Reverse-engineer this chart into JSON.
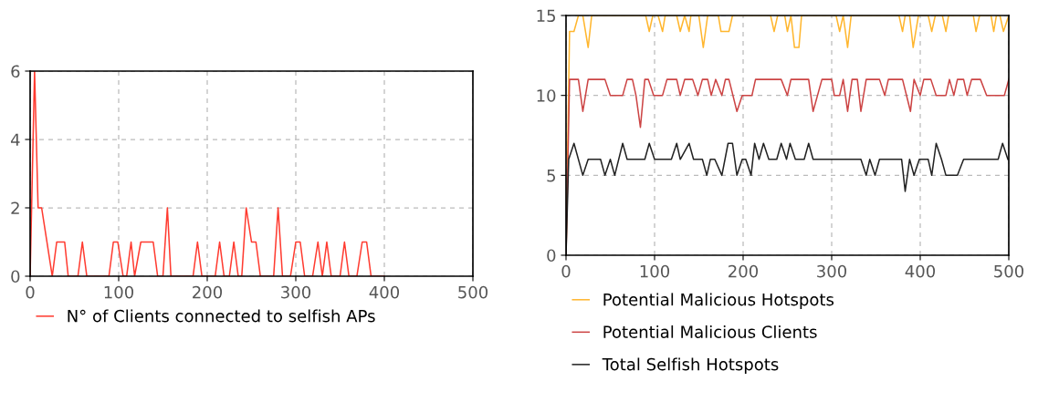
{
  "chart_data": [
    {
      "type": "line",
      "xlim": [
        0,
        500
      ],
      "xticks": [
        0,
        100,
        200,
        300,
        400,
        500
      ],
      "ylim": [
        0,
        6
      ],
      "yticks": [
        0,
        2,
        4,
        6
      ],
      "grid": true,
      "legend": "bottom",
      "marker": "none",
      "line_style": "solid",
      "series": [
        {
          "name": "N° of Clients connected to selfish APs",
          "color": "#ff3b30",
          "x": [
            0,
            5,
            9,
            13,
            25,
            30,
            39,
            43,
            54,
            59,
            64,
            89,
            94,
            99,
            105,
            109,
            114,
            118,
            125,
            139,
            144,
            150,
            155,
            159,
            184,
            189,
            194,
            209,
            214,
            219,
            225,
            230,
            235,
            239,
            244,
            250,
            255,
            260,
            275,
            280,
            285,
            294,
            300,
            305,
            310,
            319,
            325,
            330,
            335,
            340,
            350,
            355,
            360,
            369,
            375,
            380,
            385,
            400
          ],
          "values": [
            0,
            6,
            2,
            2,
            0,
            1,
            1,
            0,
            0,
            1,
            0,
            0,
            1,
            1,
            0,
            0,
            1,
            0,
            1,
            1,
            0,
            0,
            2,
            0,
            0,
            1,
            0,
            0,
            1,
            0,
            0,
            1,
            0,
            0,
            2,
            1,
            1,
            0,
            0,
            2,
            0,
            0,
            1,
            1,
            0,
            0,
            1,
            0,
            1,
            0,
            0,
            1,
            0,
            0,
            1,
            1,
            0,
            0
          ]
        }
      ]
    },
    {
      "type": "line",
      "xlim": [
        0,
        500
      ],
      "xticks": [
        0,
        100,
        200,
        300,
        400,
        500
      ],
      "ylim": [
        0,
        15
      ],
      "yticks": [
        0,
        5,
        10,
        15
      ],
      "grid": true,
      "legend": "bottom",
      "marker": "none",
      "line_style": "solid",
      "series": [
        {
          "name": "Potential Malicious Hotspots",
          "color": "#ffb62e",
          "x": [
            0,
            4,
            9,
            14,
            19,
            25,
            29,
            90,
            94,
            98,
            104,
            109,
            112,
            125,
            129,
            134,
            139,
            141,
            150,
            155,
            160,
            172,
            175,
            184,
            188,
            231,
            235,
            239,
            247,
            250,
            254,
            258,
            263,
            266,
            305,
            309,
            313,
            318,
            322,
            376,
            380,
            383,
            388,
            392,
            398,
            409,
            413,
            417,
            425,
            429,
            432,
            460,
            463,
            467,
            480,
            483,
            486,
            490,
            494,
            500
          ],
          "values": [
            0,
            14,
            14,
            15,
            15,
            13,
            15,
            15,
            14,
            15,
            15,
            14,
            15,
            15,
            14,
            15,
            14,
            15,
            15,
            13,
            15,
            15,
            14,
            14,
            15,
            15,
            14,
            15,
            15,
            14,
            15,
            13,
            13,
            15,
            15,
            14,
            15,
            13,
            15,
            15,
            14,
            15,
            15,
            13,
            15,
            15,
            14,
            15,
            15,
            14,
            15,
            15,
            14,
            15,
            15,
            14,
            15,
            15,
            14,
            15
          ]
        },
        {
          "name": "Potential Malicious Clients",
          "color": "#cc4444",
          "x": [
            0,
            4,
            14,
            19,
            25,
            44,
            50,
            64,
            69,
            75,
            79,
            84,
            89,
            93,
            99,
            109,
            114,
            125,
            129,
            134,
            143,
            149,
            154,
            160,
            164,
            169,
            176,
            180,
            184,
            193,
            199,
            210,
            214,
            243,
            250,
            254,
            274,
            279,
            289,
            300,
            303,
            309,
            313,
            318,
            323,
            329,
            333,
            339,
            354,
            360,
            364,
            380,
            389,
            393,
            400,
            404,
            412,
            418,
            429,
            433,
            438,
            442,
            449,
            453,
            458,
            468,
            475,
            495,
            500
          ],
          "values": [
            0,
            11,
            11,
            9,
            11,
            11,
            10,
            10,
            11,
            11,
            10,
            8,
            11,
            11,
            10,
            10,
            11,
            11,
            10,
            11,
            11,
            10,
            11,
            11,
            10,
            11,
            10,
            11,
            11,
            9,
            10,
            10,
            11,
            11,
            10,
            11,
            11,
            9,
            11,
            11,
            10,
            10,
            11,
            9,
            11,
            11,
            9,
            11,
            11,
            10,
            11,
            11,
            9,
            11,
            10,
            11,
            11,
            10,
            10,
            11,
            10,
            11,
            11,
            10,
            11,
            11,
            10,
            10,
            11
          ]
        },
        {
          "name": "Total Selfish Hotspots",
          "color": "#222222",
          "x": [
            0,
            3,
            9,
            19,
            25,
            39,
            44,
            50,
            55,
            64,
            69,
            89,
            94,
            100,
            119,
            125,
            129,
            139,
            144,
            154,
            159,
            163,
            168,
            176,
            183,
            188,
            193,
            199,
            203,
            209,
            213,
            218,
            223,
            229,
            238,
            243,
            249,
            253,
            259,
            269,
            274,
            279,
            333,
            339,
            343,
            349,
            354,
            379,
            383,
            388,
            393,
            399,
            409,
            413,
            418,
            424,
            429,
            442,
            449,
            488,
            493,
            499
          ],
          "values": [
            0,
            6,
            7,
            5,
            6,
            6,
            5,
            6,
            5,
            7,
            6,
            6,
            7,
            6,
            6,
            7,
            6,
            7,
            6,
            6,
            5,
            6,
            6,
            5,
            7,
            7,
            5,
            6,
            6,
            5,
            7,
            6,
            7,
            6,
            6,
            7,
            6,
            7,
            6,
            6,
            7,
            6,
            6,
            5,
            6,
            5,
            6,
            6,
            4,
            6,
            5,
            6,
            6,
            5,
            7,
            6,
            5,
            5,
            6,
            6,
            7,
            6
          ]
        }
      ]
    }
  ]
}
